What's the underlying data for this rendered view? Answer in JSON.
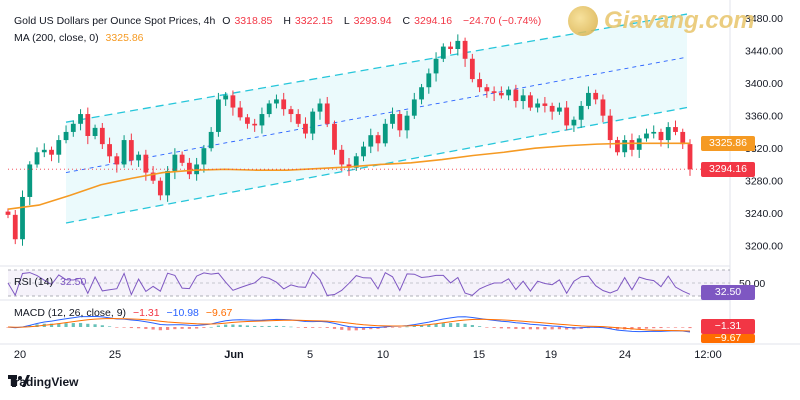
{
  "header": {
    "symbol": "Gold US Dollars per Ounce Spot Prices, 4h",
    "open_label": "O",
    "open": "3318.85",
    "high_label": "H",
    "high": "3322.15",
    "low_label": "L",
    "low": "3293.94",
    "close_label": "C",
    "close": "3294.16",
    "change": "−24.70 (−0.74%)",
    "ma_label": "MA (200, close, 0)",
    "ma_value": "3325.86"
  },
  "watermark": {
    "text": "Giavang.com"
  },
  "rsi": {
    "label": "RSI (14)",
    "value": "32.50",
    "level_label": "50.00"
  },
  "macd": {
    "label": "MACD (12, 26, close, 9)",
    "v1": "−1.31",
    "v2": "−10.98",
    "v3": "−9.67",
    "tag1": "−1.31",
    "tag2": "−9.67"
  },
  "price_tags": {
    "ma": "3325.86",
    "close": "3294.16"
  },
  "footer": {
    "brand": "TradingView"
  },
  "colors": {
    "up": "#089981",
    "down": "#f23645",
    "ma": "#f59a23",
    "channel": "#26c6da",
    "rsi": "#7e57c2",
    "macd": "#2962ff",
    "signal": "#ff6d00"
  },
  "chart_data": {
    "type": "candlestick",
    "y_ticks": [
      "3480.00",
      "3440.00",
      "3400.00",
      "3360.00",
      "3320.00",
      "3280.00",
      "3240.00",
      "3200.00"
    ],
    "y_range": [
      3180,
      3490
    ],
    "x_ticks": [
      "20",
      "25",
      "Jun",
      "5",
      "10",
      "15",
      "19",
      "24",
      "12:00"
    ],
    "ma200": [
      3245,
      3250,
      3262,
      3275,
      3283,
      3290,
      3293,
      3294,
      3293,
      3293,
      3295,
      3297,
      3300,
      3302,
      3306,
      3311,
      3315,
      3320,
      3323,
      3325,
      3326,
      3326,
      3326
    ],
    "closes": [
      3238,
      3208,
      3260,
      3300,
      3315,
      3318,
      3312,
      3330,
      3340,
      3350,
      3362,
      3335,
      3345,
      3325,
      3310,
      3300,
      3330,
      3305,
      3312,
      3290,
      3280,
      3262,
      3292,
      3312,
      3302,
      3288,
      3300,
      3320,
      3340,
      3380,
      3385,
      3370,
      3358,
      3350,
      3348,
      3362,
      3375,
      3380,
      3368,
      3362,
      3350,
      3338,
      3365,
      3375,
      3350,
      3318,
      3300,
      3296,
      3310,
      3322,
      3336,
      3326,
      3350,
      3362,
      3342,
      3360,
      3380,
      3395,
      3412,
      3430,
      3445,
      3442,
      3452,
      3430,
      3405,
      3395,
      3390,
      3388,
      3385,
      3392,
      3378,
      3385,
      3370,
      3375,
      3372,
      3365,
      3370,
      3348,
      3355,
      3372,
      3388,
      3380,
      3360,
      3330,
      3315,
      3330,
      3318,
      3332,
      3338,
      3340,
      3330,
      3346,
      3340,
      3325,
      3294
    ]
  }
}
